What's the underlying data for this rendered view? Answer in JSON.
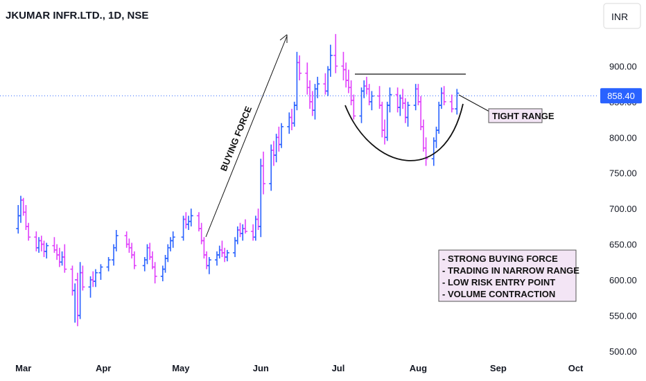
{
  "chart_data": {
    "type": "ohlc",
    "title": "JKUMAR INFR.LTD., 1D, NSE",
    "currency": "INR",
    "last_price": "858.40",
    "ylim": [
      495,
      985
    ],
    "yticks": [
      "900.00",
      "850.00",
      "800.00",
      "750.00",
      "700.00",
      "650.00",
      "600.00",
      "550.00",
      "500.00"
    ],
    "x_domain": [
      "2023-02-28",
      "2023-10-03"
    ],
    "xticks": [
      {
        "label": "Mar",
        "date": "2023-03-01"
      },
      {
        "label": "Apr",
        "date": "2023-04-01"
      },
      {
        "label": "May",
        "date": "2023-05-01"
      },
      {
        "label": "Jun",
        "date": "2023-06-01"
      },
      {
        "label": "Jul",
        "date": "2023-07-01"
      },
      {
        "label": "Aug",
        "date": "2023-08-01"
      },
      {
        "label": "Sep",
        "date": "2023-09-01"
      },
      {
        "label": "Oct",
        "date": "2023-10-01"
      }
    ],
    "colors": {
      "up": "#2962ff",
      "down": "#e040fb",
      "price_line": "#2962ff"
    },
    "bars": [
      [
        "2023-02-27",
        672,
        705,
        665,
        690
      ],
      [
        "2023-02-28",
        690,
        718,
        680,
        712
      ],
      [
        "2023-03-01",
        712,
        715,
        690,
        695
      ],
      [
        "2023-03-02",
        695,
        705,
        670,
        675
      ],
      [
        "2023-03-03",
        675,
        680,
        655,
        660
      ],
      [
        "2023-03-06",
        660,
        668,
        640,
        645
      ],
      [
        "2023-03-07",
        645,
        660,
        638,
        655
      ],
      [
        "2023-03-08",
        655,
        662,
        640,
        650
      ],
      [
        "2023-03-09",
        650,
        655,
        632,
        640
      ],
      [
        "2023-03-10",
        640,
        652,
        630,
        648
      ],
      [
        "2023-03-13",
        648,
        660,
        638,
        642
      ],
      [
        "2023-03-14",
        642,
        650,
        628,
        635
      ],
      [
        "2023-03-15",
        635,
        645,
        618,
        625
      ],
      [
        "2023-03-16",
        625,
        640,
        620,
        632
      ],
      [
        "2023-03-17",
        632,
        650,
        610,
        615
      ],
      [
        "2023-03-20",
        615,
        620,
        578,
        585
      ],
      [
        "2023-03-21",
        585,
        595,
        540,
        600
      ],
      [
        "2023-03-22",
        600,
        610,
        535,
        550
      ],
      [
        "2023-03-23",
        550,
        625,
        545,
        610
      ],
      [
        "2023-03-24",
        610,
        620,
        585,
        590
      ],
      [
        "2023-03-27",
        590,
        605,
        575,
        600
      ],
      [
        "2023-03-28",
        600,
        612,
        590,
        598
      ],
      [
        "2023-03-29",
        598,
        615,
        590,
        610
      ],
      [
        "2023-03-31",
        610,
        622,
        600,
        618
      ],
      [
        "2023-04-03",
        618,
        632,
        612,
        628
      ],
      [
        "2023-04-05",
        628,
        650,
        620,
        645
      ],
      [
        "2023-04-06",
        645,
        670,
        640,
        662
      ],
      [
        "2023-04-10",
        662,
        668,
        645,
        650
      ],
      [
        "2023-04-11",
        650,
        658,
        638,
        645
      ],
      [
        "2023-04-12",
        645,
        652,
        630,
        635
      ],
      [
        "2023-04-13",
        635,
        640,
        615,
        620
      ],
      [
        "2023-04-17",
        620,
        632,
        612,
        628
      ],
      [
        "2023-04-18",
        628,
        650,
        622,
        645
      ],
      [
        "2023-04-19",
        645,
        652,
        628,
        632
      ],
      [
        "2023-04-20",
        632,
        640,
        615,
        618
      ],
      [
        "2023-04-21",
        618,
        625,
        595,
        605
      ],
      [
        "2023-04-24",
        605,
        620,
        598,
        615
      ],
      [
        "2023-04-25",
        615,
        635,
        610,
        630
      ],
      [
        "2023-04-26",
        630,
        650,
        625,
        645
      ],
      [
        "2023-04-27",
        645,
        660,
        640,
        655
      ],
      [
        "2023-04-28",
        655,
        668,
        645,
        660
      ],
      [
        "2023-05-02",
        660,
        690,
        655,
        685
      ],
      [
        "2023-05-03",
        685,
        695,
        672,
        678
      ],
      [
        "2023-05-04",
        678,
        690,
        670,
        682
      ],
      [
        "2023-05-05",
        682,
        700,
        675,
        690
      ],
      [
        "2023-05-08",
        690,
        695,
        668,
        672
      ],
      [
        "2023-05-09",
        672,
        680,
        650,
        655
      ],
      [
        "2023-05-10",
        655,
        660,
        630,
        635
      ],
      [
        "2023-05-11",
        635,
        640,
        615,
        620
      ],
      [
        "2023-05-12",
        620,
        632,
        608,
        628
      ],
      [
        "2023-05-15",
        628,
        640,
        620,
        635
      ],
      [
        "2023-05-16",
        635,
        648,
        630,
        642
      ],
      [
        "2023-05-17",
        642,
        655,
        632,
        638
      ],
      [
        "2023-05-18",
        638,
        645,
        625,
        632
      ],
      [
        "2023-05-19",
        632,
        642,
        626,
        638
      ],
      [
        "2023-05-22",
        638,
        660,
        632,
        655
      ],
      [
        "2023-05-23",
        655,
        675,
        650,
        670
      ],
      [
        "2023-05-24",
        670,
        680,
        660,
        665
      ],
      [
        "2023-05-25",
        665,
        678,
        655,
        672
      ],
      [
        "2023-05-26",
        672,
        685,
        665,
        668
      ],
      [
        "2023-05-29",
        668,
        678,
        655,
        660
      ],
      [
        "2023-05-30",
        660,
        690,
        655,
        685
      ],
      [
        "2023-05-31",
        685,
        700,
        670,
        675
      ],
      [
        "2023-06-01",
        675,
        770,
        660,
        760
      ],
      [
        "2023-06-02",
        760,
        780,
        720,
        735
      ],
      [
        "2023-06-05",
        735,
        790,
        725,
        782
      ],
      [
        "2023-06-06",
        782,
        795,
        760,
        775
      ],
      [
        "2023-06-07",
        775,
        805,
        765,
        800
      ],
      [
        "2023-06-08",
        800,
        815,
        780,
        790
      ],
      [
        "2023-06-09",
        790,
        820,
        785,
        815
      ],
      [
        "2023-06-12",
        815,
        835,
        805,
        828
      ],
      [
        "2023-06-13",
        828,
        840,
        810,
        820
      ],
      [
        "2023-06-14",
        820,
        850,
        815,
        845
      ],
      [
        "2023-06-15",
        845,
        920,
        838,
        905
      ],
      [
        "2023-06-16",
        905,
        915,
        880,
        890
      ],
      [
        "2023-06-19",
        890,
        905,
        860,
        870
      ],
      [
        "2023-06-20",
        870,
        880,
        840,
        850
      ],
      [
        "2023-06-21",
        850,
        865,
        830,
        838
      ],
      [
        "2023-06-22",
        838,
        875,
        825,
        868
      ],
      [
        "2023-06-23",
        868,
        885,
        855,
        875
      ],
      [
        "2023-06-26",
        875,
        890,
        860,
        865
      ],
      [
        "2023-06-27",
        865,
        900,
        858,
        895
      ],
      [
        "2023-06-28",
        895,
        930,
        885,
        915
      ],
      [
        "2023-06-30",
        915,
        945,
        890,
        900
      ],
      [
        "2023-07-03",
        900,
        920,
        880,
        895
      ],
      [
        "2023-07-04",
        895,
        905,
        870,
        880
      ],
      [
        "2023-07-05",
        880,
        895,
        862,
        870
      ],
      [
        "2023-07-06",
        870,
        880,
        845,
        852
      ],
      [
        "2023-07-07",
        852,
        860,
        825,
        830
      ],
      [
        "2023-07-10",
        830,
        870,
        820,
        865
      ],
      [
        "2023-07-11",
        865,
        880,
        855,
        872
      ],
      [
        "2023-07-12",
        872,
        885,
        860,
        868
      ],
      [
        "2023-07-13",
        868,
        875,
        845,
        850
      ],
      [
        "2023-07-14",
        850,
        865,
        838,
        858
      ],
      [
        "2023-07-17",
        858,
        872,
        840,
        845
      ],
      [
        "2023-07-18",
        845,
        850,
        800,
        810
      ],
      [
        "2023-07-19",
        810,
        825,
        790,
        800
      ],
      [
        "2023-07-20",
        800,
        850,
        795,
        845
      ],
      [
        "2023-07-21",
        845,
        870,
        835,
        860
      ],
      [
        "2023-07-24",
        860,
        870,
        835,
        842
      ],
      [
        "2023-07-25",
        842,
        860,
        830,
        855
      ],
      [
        "2023-07-26",
        855,
        868,
        840,
        848
      ],
      [
        "2023-07-27",
        848,
        855,
        820,
        828
      ],
      [
        "2023-07-28",
        828,
        850,
        815,
        845
      ],
      [
        "2023-07-31",
        845,
        875,
        838,
        868
      ],
      [
        "2023-08-01",
        868,
        875,
        845,
        850
      ],
      [
        "2023-08-02",
        850,
        858,
        810,
        815
      ],
      [
        "2023-08-03",
        815,
        825,
        780,
        785
      ],
      [
        "2023-08-04",
        785,
        800,
        760,
        770
      ],
      [
        "2023-08-07",
        770,
        800,
        760,
        795
      ],
      [
        "2023-08-08",
        795,
        815,
        785,
        810
      ],
      [
        "2023-08-09",
        810,
        850,
        805,
        845
      ],
      [
        "2023-08-10",
        845,
        870,
        840,
        862
      ],
      [
        "2023-08-11",
        862,
        872,
        845,
        850
      ],
      [
        "2023-08-14",
        850,
        860,
        835,
        840
      ],
      [
        "2023-08-16",
        840,
        868,
        832,
        862
      ]
    ],
    "annotations": [
      "BUYING FORCE",
      "TIGHT RANGE",
      "- STRONG BUYING FORCE",
      "- TRADING IN NARROW RANGE",
      "- LOW RISK ENTRY POINT",
      "- VOLUME CONTRACTION"
    ]
  }
}
